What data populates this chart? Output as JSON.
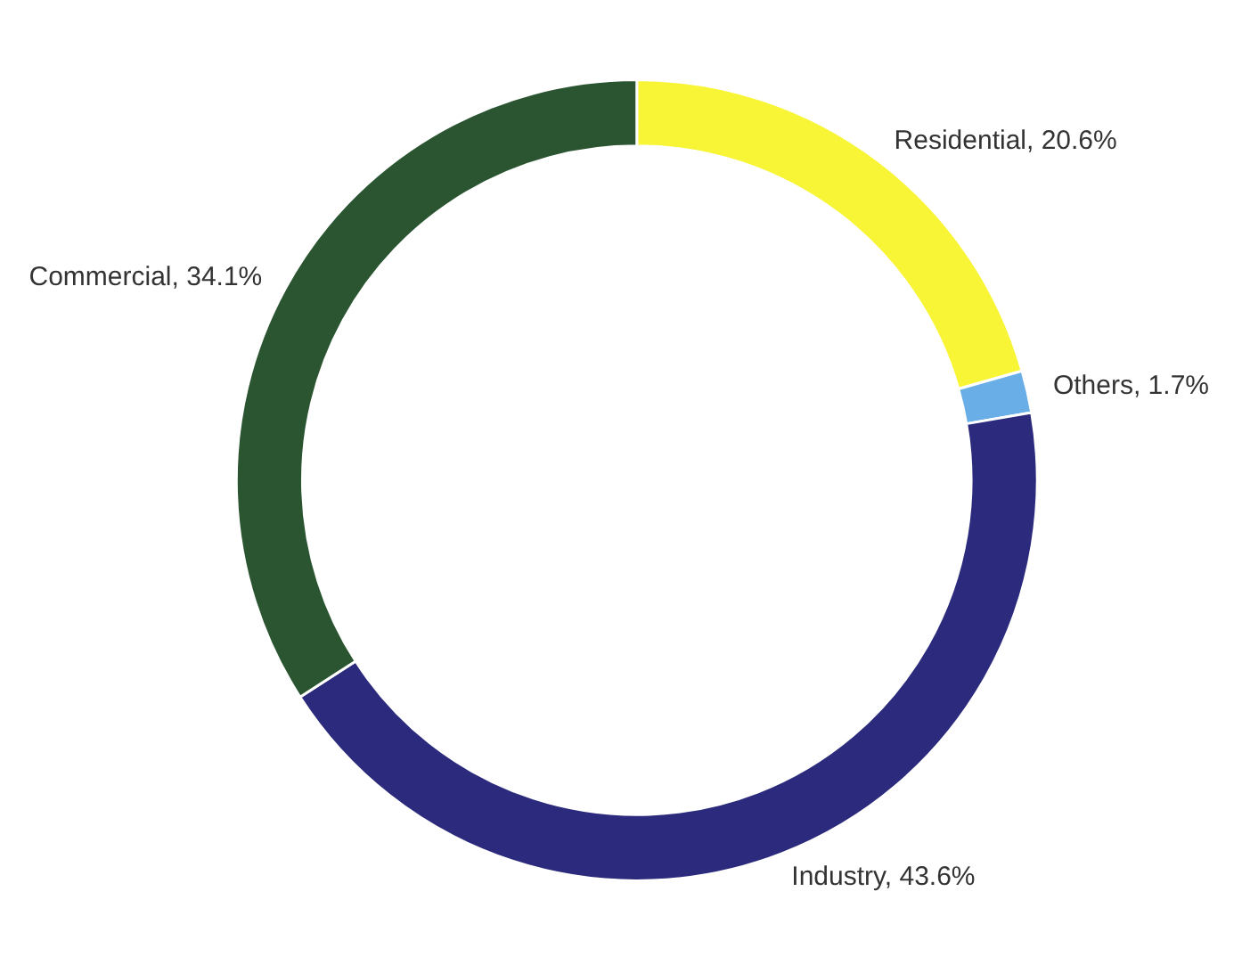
{
  "chart_data": {
    "type": "donut",
    "categories": [
      "Residential",
      "Others",
      "Industry",
      "Commercial"
    ],
    "values": [
      20.6,
      1.7,
      43.6,
      34.1
    ],
    "colors": [
      "#f7f536",
      "#6aaee8",
      "#2b2a7c",
      "#2a5530"
    ],
    "value_labels": [
      "20.6%",
      "1.7%",
      "43.6%",
      "34.1%"
    ],
    "legend": false
  }
}
